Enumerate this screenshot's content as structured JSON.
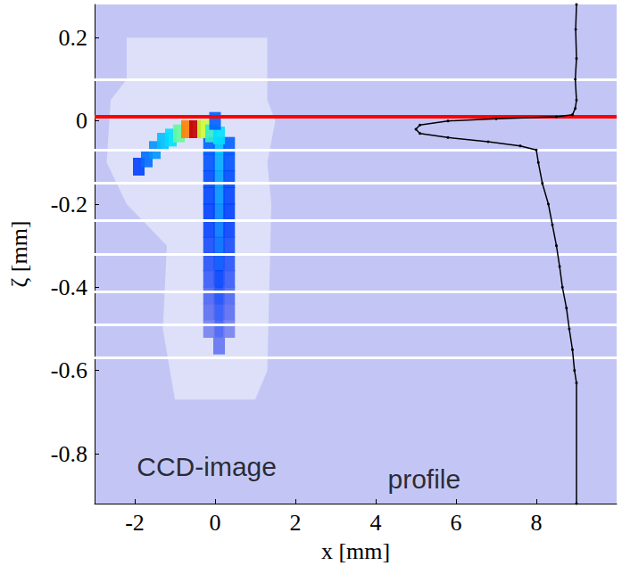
{
  "chart_data": {
    "type": "scatter",
    "x_label": "x [mm]",
    "y_label": "ζ [mm]",
    "xlim": [
      -3,
      10
    ],
    "ylim": [
      -0.92,
      0.28
    ],
    "xticks": [
      -2,
      0,
      2,
      4,
      6,
      8
    ],
    "yticks": [
      -0.8,
      -0.6,
      -0.4,
      -0.2,
      0,
      0.2
    ],
    "grid": false,
    "color": "#c3c6f5",
    "series": [
      {
        "type": "polygon",
        "color": "#dde0f8",
        "values": [
          [
            -2.2,
            0.2
          ],
          [
            1.3,
            0.2
          ],
          [
            1.3,
            0.05
          ],
          [
            1.5,
            0.0
          ],
          [
            1.3,
            -0.1
          ],
          [
            1.4,
            -0.2
          ],
          [
            1.3,
            -0.6
          ],
          [
            1.0,
            -0.67
          ],
          [
            -1.0,
            -0.67
          ],
          [
            -1.3,
            -0.5
          ],
          [
            -1.2,
            -0.3
          ],
          [
            -2.2,
            -0.2
          ],
          [
            -2.7,
            -0.1
          ],
          [
            -2.6,
            0.05
          ],
          [
            -2.2,
            0.1
          ]
        ]
      },
      {
        "type": "heatmap",
        "intensity_range": [
          0,
          1
        ],
        "values": [
          [
            0.1,
            -0.06,
            0.45
          ],
          [
            0.1,
            -0.1,
            0.42
          ],
          [
            0.1,
            -0.14,
            0.4
          ],
          [
            0.1,
            -0.18,
            0.38
          ],
          [
            0.1,
            -0.22,
            0.36
          ],
          [
            0.1,
            -0.26,
            0.34
          ],
          [
            0.1,
            -0.3,
            0.32
          ],
          [
            0.1,
            -0.34,
            0.28
          ],
          [
            0.1,
            -0.38,
            0.25
          ],
          [
            0.1,
            -0.42,
            0.22
          ],
          [
            0.1,
            -0.46,
            0.19
          ],
          [
            0.1,
            -0.5,
            0.16
          ],
          [
            0.1,
            -0.54,
            0.12
          ],
          [
            -0.15,
            -0.06,
            0.3
          ],
          [
            -0.15,
            -0.1,
            0.28
          ],
          [
            -0.15,
            -0.14,
            0.27
          ],
          [
            -0.15,
            -0.18,
            0.26
          ],
          [
            -0.15,
            -0.22,
            0.25
          ],
          [
            -0.15,
            -0.26,
            0.24
          ],
          [
            -0.15,
            -0.3,
            0.22
          ],
          [
            -0.15,
            -0.34,
            0.2
          ],
          [
            -0.15,
            -0.38,
            0.18
          ],
          [
            -0.15,
            -0.42,
            0.15
          ],
          [
            -0.15,
            -0.46,
            0.13
          ],
          [
            -0.15,
            -0.5,
            0.1
          ],
          [
            0.35,
            -0.06,
            0.3
          ],
          [
            0.35,
            -0.1,
            0.28
          ],
          [
            0.35,
            -0.14,
            0.27
          ],
          [
            0.35,
            -0.18,
            0.26
          ],
          [
            0.35,
            -0.22,
            0.25
          ],
          [
            0.35,
            -0.26,
            0.24
          ],
          [
            0.35,
            -0.3,
            0.22
          ],
          [
            0.35,
            -0.34,
            0.2
          ],
          [
            0.35,
            -0.38,
            0.18
          ],
          [
            0.35,
            -0.42,
            0.15
          ],
          [
            0.35,
            -0.46,
            0.13
          ],
          [
            0.35,
            -0.5,
            0.1
          ],
          [
            -1.9,
            -0.11,
            0.25
          ],
          [
            -1.7,
            -0.09,
            0.32
          ],
          [
            -1.5,
            -0.07,
            0.38
          ],
          [
            -1.3,
            -0.05,
            0.45
          ],
          [
            -1.1,
            -0.04,
            0.5
          ],
          [
            -0.9,
            -0.03,
            0.6
          ],
          [
            -0.7,
            -0.02,
            0.85
          ],
          [
            -0.5,
            -0.02,
            1.0
          ],
          [
            -0.3,
            -0.02,
            0.7
          ],
          [
            -0.1,
            -0.03,
            0.55
          ],
          [
            0.1,
            -0.035,
            0.5
          ],
          [
            0.0,
            0.0,
            0.3
          ]
        ]
      },
      {
        "type": "hline",
        "color": "#ffffff",
        "values": [
          0.095,
          -0.075,
          -0.155,
          -0.24,
          -0.32,
          -0.405,
          -0.49,
          -0.57
        ]
      },
      {
        "type": "hline",
        "color": "#ff0000",
        "values": [
          0.01
        ]
      },
      {
        "type": "line",
        "color": "#000000",
        "marker": "circle",
        "values": [
          [
            9.0,
            0.28
          ],
          [
            8.98,
            0.22
          ],
          [
            9.0,
            0.15
          ],
          [
            8.97,
            0.1
          ],
          [
            9.0,
            0.05
          ],
          [
            8.97,
            0.03
          ],
          [
            8.9,
            0.015
          ],
          [
            8.5,
            0.01
          ],
          [
            7.0,
            0.005
          ],
          [
            5.8,
            0.0
          ],
          [
            5.1,
            -0.01
          ],
          [
            5.0,
            -0.02
          ],
          [
            5.1,
            -0.03
          ],
          [
            5.8,
            -0.04
          ],
          [
            6.8,
            -0.05
          ],
          [
            7.6,
            -0.06
          ],
          [
            8.0,
            -0.07
          ],
          [
            8.05,
            -0.1
          ],
          [
            8.15,
            -0.15
          ],
          [
            8.3,
            -0.2
          ],
          [
            8.4,
            -0.25
          ],
          [
            8.5,
            -0.3
          ],
          [
            8.58,
            -0.35
          ],
          [
            8.65,
            -0.4
          ],
          [
            8.75,
            -0.45
          ],
          [
            8.82,
            -0.5
          ],
          [
            8.9,
            -0.55
          ],
          [
            8.95,
            -0.6
          ],
          [
            9.0,
            -0.63
          ],
          [
            9.0,
            -0.92
          ]
        ]
      }
    ],
    "annotations": [
      {
        "text": "CCD-image",
        "x": -1.95,
        "y": -0.83
      },
      {
        "text": "profile",
        "x": 4.3,
        "y": -0.86
      }
    ]
  }
}
